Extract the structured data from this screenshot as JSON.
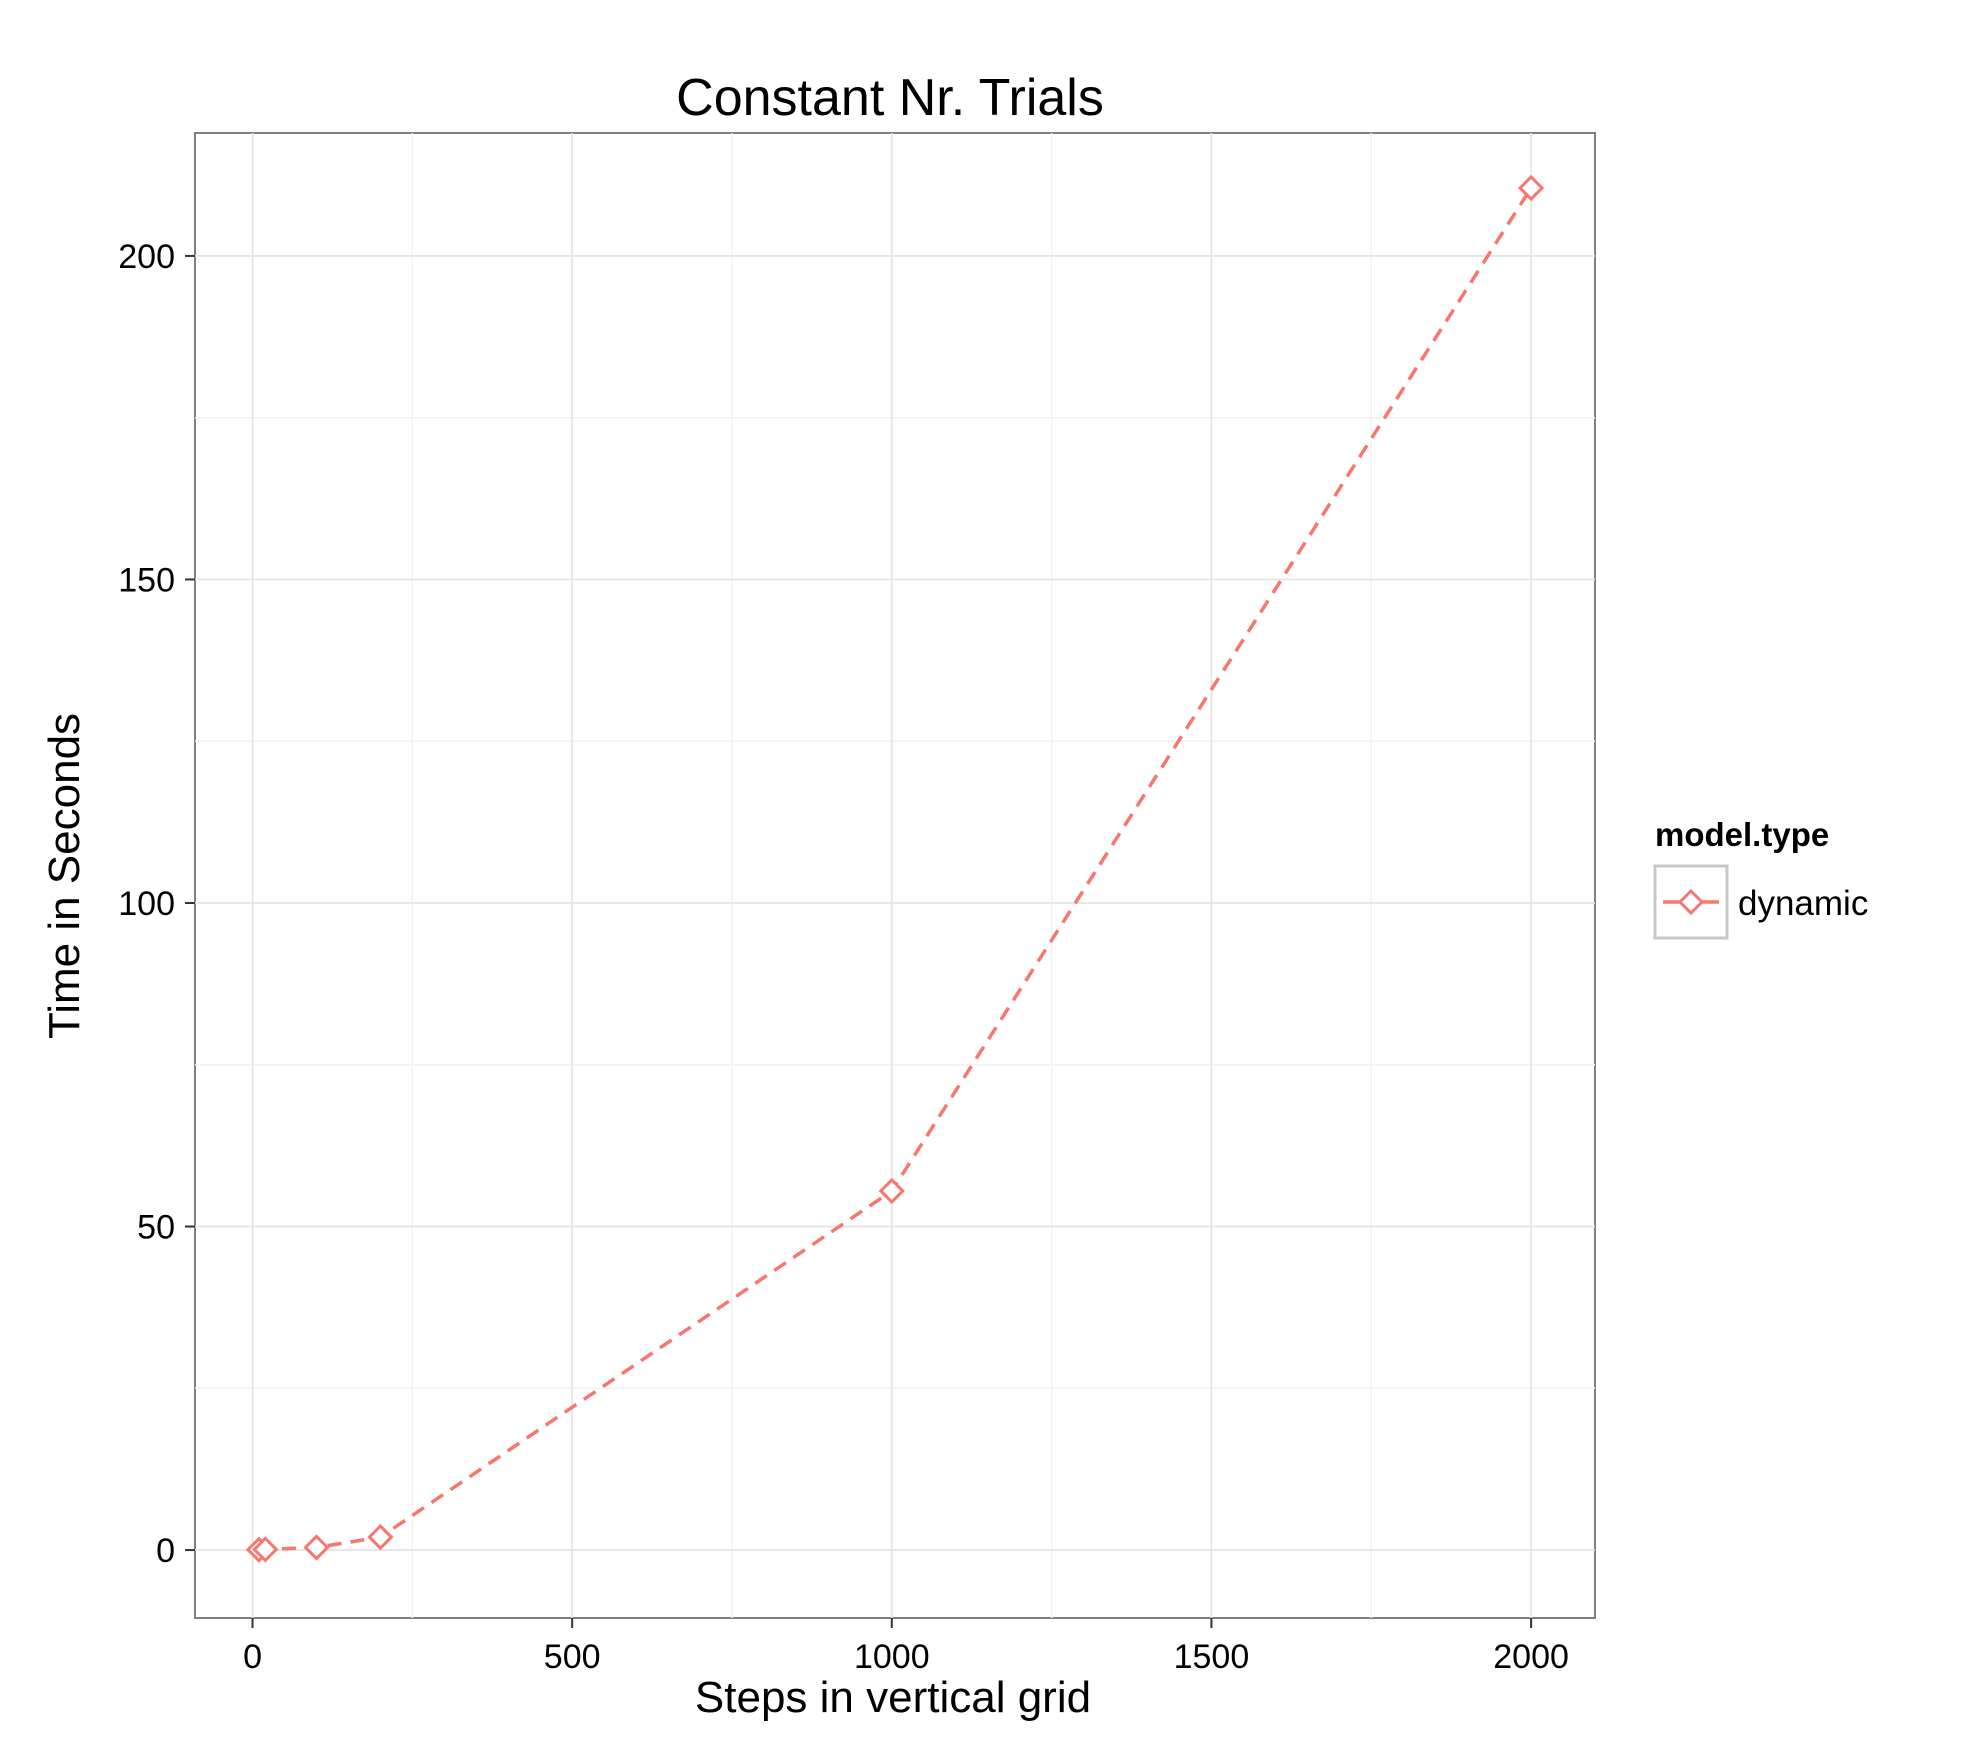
{
  "chart_data": {
    "type": "line",
    "title": "Constant Nr. Trials",
    "xlabel": "Steps in vertical grid",
    "ylabel": "Time in Seconds",
    "xlim": [
      -90,
      2100
    ],
    "ylim": [
      -10.5,
      219
    ],
    "x_ticks": [
      0,
      500,
      1000,
      1500,
      2000
    ],
    "y_ticks": [
      0,
      50,
      100,
      150,
      200
    ],
    "x_tick_labels": [
      "0",
      "500",
      "1000",
      "1500",
      "2000"
    ],
    "y_tick_labels": [
      "0",
      "50",
      "100",
      "150",
      "200"
    ],
    "grid": true,
    "legend": {
      "title": "model.type",
      "position": "right"
    },
    "series": [
      {
        "name": "dynamic",
        "color": "#F8766D",
        "line_style": "dashed",
        "marker": "open-diamond",
        "x": [
          10,
          20,
          100,
          200,
          1000,
          2000
        ],
        "y": [
          0.05,
          0.1,
          0.4,
          2.0,
          55.5,
          210.5
        ]
      }
    ]
  }
}
